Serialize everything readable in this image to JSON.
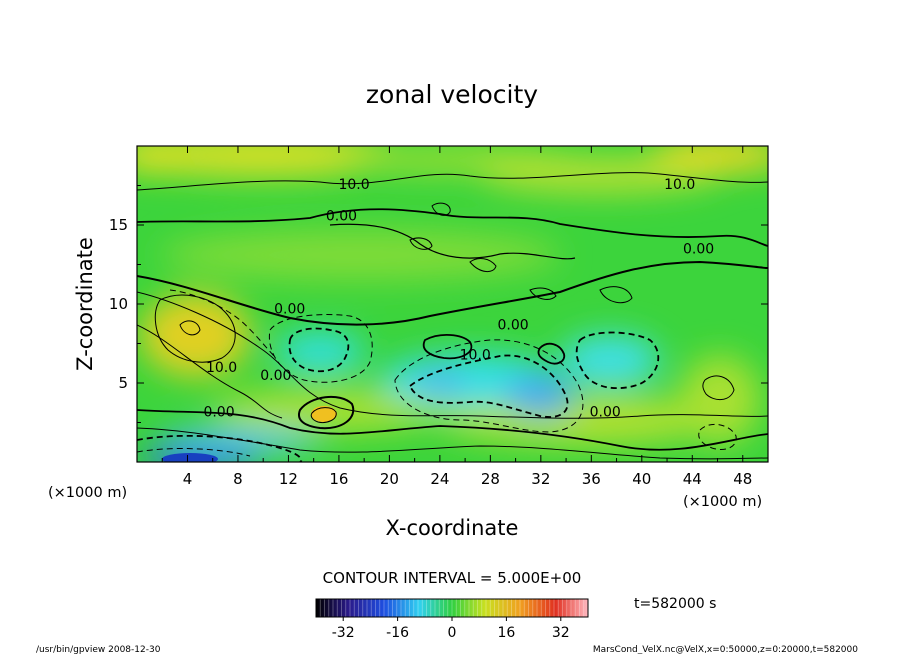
{
  "chart_data": {
    "type": "heatmap",
    "title": "zonal velocity",
    "xlabel": "X-coordinate",
    "ylabel": "Z-coordinate",
    "x_unit": "(×1000 m)",
    "z_unit": "(×1000 m)",
    "xlim": [
      0,
      50
    ],
    "ylim": [
      0,
      20
    ],
    "xticks": [
      "4",
      "8",
      "12",
      "16",
      "20",
      "24",
      "28",
      "32",
      "36",
      "40",
      "44",
      "48"
    ],
    "yticks": [
      "5",
      "10",
      "15"
    ],
    "contour_interval_text": "CONTOUR INTERVAL = 5.000E+00",
    "time_label": "t=582000 s",
    "colorbar": {
      "min": -40,
      "max": 40,
      "ticks": [
        "-32",
        "-16",
        "0",
        "16",
        "32"
      ]
    },
    "contour_labels": [
      {
        "text": "10.0",
        "x": 17.2,
        "z": 17.6
      },
      {
        "text": "10.0",
        "x": 43.0,
        "z": 17.6
      },
      {
        "text": "0.00",
        "x": 16.2,
        "z": 15.6
      },
      {
        "text": "0.00",
        "x": 44.5,
        "z": 13.5
      },
      {
        "text": "0.00",
        "x": 12.1,
        "z": 9.7
      },
      {
        "text": "0.00",
        "x": 29.8,
        "z": 8.7
      },
      {
        "text": "10.0",
        "x": 26.8,
        "z": 6.8
      },
      {
        "text": "10.0",
        "x": 6.7,
        "z": 6.0
      },
      {
        "text": "0.00",
        "x": 11.0,
        "z": 5.5
      },
      {
        "text": "0.00",
        "x": 6.5,
        "z": 3.2
      },
      {
        "text": "0.00",
        "x": 37.1,
        "z": 3.2
      }
    ],
    "footer_left": "/usr/bin/gpview   2008-12-30",
    "footer_right": "MarsCond_VelX.nc@VelX,x=0:50000,z=0:20000,t=582000"
  }
}
